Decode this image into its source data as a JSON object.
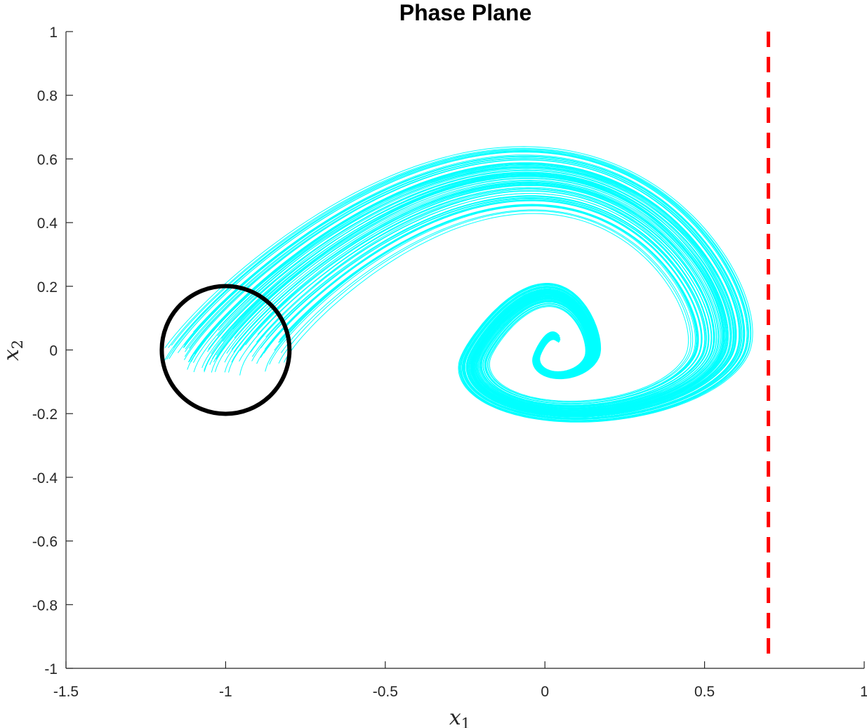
{
  "chart_data": {
    "type": "line",
    "title": "Phase Plane",
    "xlabel": "x",
    "xlabel_sub": "1",
    "ylabel": "x",
    "ylabel_sub": "2",
    "xlim": [
      -1.5,
      1
    ],
    "ylim": [
      -1,
      1
    ],
    "xticks": [
      -1.5,
      -1,
      -0.5,
      0,
      0.5,
      1
    ],
    "xtick_labels": [
      "-1.5",
      "-1",
      "-0.5",
      "0",
      "0.5",
      "1"
    ],
    "yticks": [
      -1,
      -0.8,
      -0.6,
      -0.4,
      -0.2,
      0,
      0.2,
      0.4,
      0.6,
      0.8,
      1
    ],
    "ytick_labels": [
      "-1",
      "-0.8",
      "-0.6",
      "-0.4",
      "-0.2",
      "0",
      "0.2",
      "0.4",
      "0.6",
      "0.8",
      "1"
    ],
    "grid": false,
    "trajectories": {
      "color": "#00ffff",
      "count": 90,
      "start_region": {
        "shape": "disk",
        "center": [
          -1,
          0
        ],
        "radius": 0.2
      },
      "end_point": [
        0.03,
        -0.02
      ],
      "description_values": {
        "max_x1": 0.57,
        "max_x2": 0.43,
        "min_x2_spiral": -0.17,
        "min_x1_spiral": -0.22
      }
    },
    "initial_set": {
      "shape": "circle",
      "center": [
        -1,
        0
      ],
      "radius": 0.2,
      "color": "#000000"
    },
    "boundary": {
      "type": "vertical",
      "x": 0.7,
      "style": "dashed",
      "color": "#ff0000"
    }
  }
}
